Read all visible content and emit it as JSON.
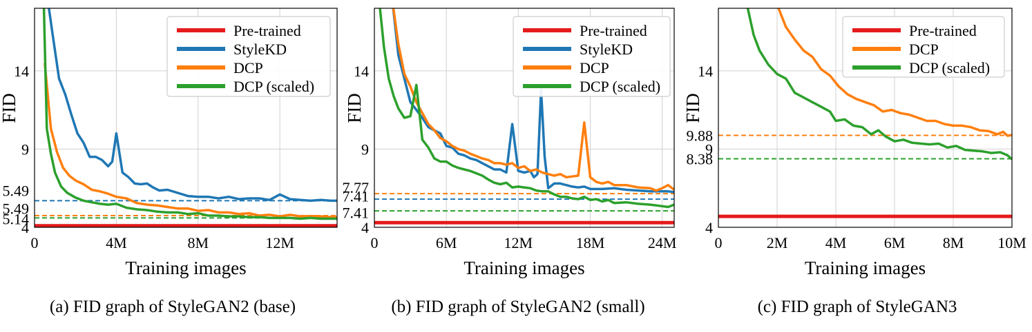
{
  "colors": {
    "pretrained": "#e41a1c",
    "stylekd": "#1f77b4",
    "dcp": "#ff7f0e",
    "dcp_scaled": "#2ca02c",
    "grid": "#d0d0d0"
  },
  "chart_data": [
    {
      "type": "line",
      "caption": "(a) FID graph of StyleGAN2 (base)",
      "xlabel": "Training images",
      "ylabel": "FID",
      "xlim": [
        0,
        14.8
      ],
      "ylim": [
        4,
        18
      ],
      "xticks": [
        {
          "v": 0,
          "label": "0"
        },
        {
          "v": 4,
          "label": "4M"
        },
        {
          "v": 8,
          "label": "8M"
        },
        {
          "v": 12,
          "label": "12M"
        }
      ],
      "yticks": [
        {
          "v": 4,
          "label": "4"
        },
        {
          "v": 9,
          "label": "9"
        },
        {
          "v": 14,
          "label": "14"
        }
      ],
      "ref_labels": [
        {
          "v": 6.35,
          "label": "5.49",
          "color": "#1f77b4"
        },
        {
          "v": 5.22,
          "label": "5.49",
          "color": "#ff7f0e"
        },
        {
          "v": 4.55,
          "label": "5.14",
          "color": "#2ca02c"
        }
      ],
      "ref_lines": [
        {
          "v": 5.7,
          "color": "#1f77b4"
        },
        {
          "v": 4.75,
          "color": "#ff7f0e"
        },
        {
          "v": 4.6,
          "color": "#2ca02c"
        }
      ],
      "legend": [
        "Pre-trained",
        "StyleKD",
        "DCP",
        "DCP (scaled)"
      ],
      "legend_position": "top-right",
      "grid": true,
      "series": [
        {
          "name": "Pre-trained",
          "color": "#e41a1c",
          "x": [
            0,
            14.8
          ],
          "y": [
            4.1,
            4.1
          ]
        },
        {
          "name": "StyleKD",
          "color": "#1f77b4",
          "x": [
            0.65,
            0.9,
            1.2,
            1.5,
            1.8,
            2.1,
            2.4,
            2.7,
            3.0,
            3.3,
            3.6,
            3.8,
            4.0,
            4.3,
            4.6,
            4.9,
            5.2,
            5.5,
            5.8,
            6.1,
            6.5,
            7.0,
            7.5,
            8.0,
            8.5,
            9.0,
            9.5,
            10.0,
            10.5,
            11.0,
            11.5,
            12.0,
            12.5,
            13.0,
            13.5,
            14.0,
            14.5,
            14.8
          ],
          "y": [
            18.5,
            16.2,
            13.5,
            12.5,
            11.2,
            10.0,
            9.4,
            8.5,
            8.5,
            8.3,
            7.9,
            8.2,
            10.0,
            7.5,
            7.2,
            6.8,
            6.75,
            6.8,
            6.55,
            6.35,
            6.4,
            6.2,
            6.0,
            5.95,
            5.95,
            5.85,
            5.95,
            5.8,
            5.85,
            5.85,
            5.75,
            6.1,
            5.8,
            5.75,
            5.7,
            5.75,
            5.7,
            5.7
          ]
        },
        {
          "name": "DCP",
          "color": "#ff7f0e",
          "x": [
            0.5,
            0.8,
            1.1,
            1.4,
            1.7,
            2.0,
            2.4,
            2.8,
            3.2,
            3.6,
            4.0,
            4.5,
            5.0,
            5.5,
            6.0,
            6.5,
            7.0,
            7.5,
            8.0,
            8.5,
            9.0,
            9.5,
            10.0,
            10.5,
            11.0,
            11.5,
            12.0,
            12.5,
            13.0,
            13.5,
            14.0,
            14.5,
            14.8
          ],
          "y": [
            14.5,
            10.3,
            8.8,
            7.8,
            7.3,
            7.0,
            6.75,
            6.4,
            6.3,
            6.15,
            5.95,
            5.85,
            5.55,
            5.45,
            5.4,
            5.3,
            5.2,
            5.2,
            5.05,
            5.1,
            4.95,
            4.95,
            4.85,
            4.9,
            4.75,
            4.8,
            4.7,
            4.8,
            4.7,
            4.72,
            4.7,
            4.65,
            4.65
          ]
        },
        {
          "name": "DCP (scaled)",
          "color": "#2ca02c",
          "x": [
            0.45,
            0.6,
            0.8,
            1.0,
            1.3,
            1.6,
            2.0,
            2.4,
            2.8,
            3.2,
            3.6,
            4.0,
            4.5,
            5.0,
            5.5,
            6.0,
            6.5,
            7.0,
            7.5,
            8.0,
            8.5,
            9.0,
            9.5,
            10.0,
            10.5,
            11.0,
            11.5,
            12.0,
            12.5,
            13.0,
            13.5,
            14.0,
            14.5,
            14.8
          ],
          "y": [
            18.5,
            10.3,
            8.7,
            7.5,
            6.6,
            6.2,
            5.9,
            5.7,
            5.6,
            5.5,
            5.45,
            5.5,
            5.25,
            5.15,
            5.1,
            5.0,
            4.95,
            4.95,
            4.85,
            4.9,
            4.75,
            4.75,
            4.7,
            4.7,
            4.65,
            4.65,
            4.6,
            4.6,
            4.6,
            4.55,
            4.6,
            4.55,
            4.55,
            4.55
          ]
        }
      ]
    },
    {
      "type": "line",
      "caption": "(b) FID graph of StyleGAN2 (small)",
      "xlabel": "Training images",
      "ylabel": "FID",
      "xlim": [
        0,
        25
      ],
      "ylim": [
        4,
        18
      ],
      "xticks": [
        {
          "v": 0,
          "label": "0"
        },
        {
          "v": 6,
          "label": "6M"
        },
        {
          "v": 12,
          "label": "12M"
        },
        {
          "v": 18,
          "label": "18M"
        },
        {
          "v": 24,
          "label": "24M"
        }
      ],
      "yticks": [
        {
          "v": 4,
          "label": "4"
        },
        {
          "v": 9,
          "label": "9"
        },
        {
          "v": 14,
          "label": "14"
        }
      ],
      "ref_labels": [
        {
          "v": 6.55,
          "label": "7.77",
          "color": "#ff7f0e"
        },
        {
          "v": 6.0,
          "label": "7.41",
          "color": "#1f77b4"
        },
        {
          "v": 4.95,
          "label": "7.41",
          "color": "#2ca02c"
        }
      ],
      "ref_lines": [
        {
          "v": 6.15,
          "color": "#ff7f0e"
        },
        {
          "v": 5.8,
          "color": "#1f77b4"
        },
        {
          "v": 5.05,
          "color": "#2ca02c"
        }
      ],
      "legend": [
        "Pre-trained",
        "StyleKD",
        "DCP",
        "DCP (scaled)"
      ],
      "legend_position": "top-right",
      "grid": true,
      "series": [
        {
          "name": "Pre-trained",
          "color": "#e41a1c",
          "x": [
            0,
            25
          ],
          "y": [
            4.3,
            4.3
          ]
        },
        {
          "name": "StyleKD",
          "color": "#1f77b4",
          "x": [
            1.5,
            2.0,
            2.5,
            3.0,
            3.5,
            4.0,
            4.5,
            5.0,
            5.5,
            6.0,
            6.5,
            7.0,
            7.5,
            8.0,
            8.5,
            9.0,
            9.5,
            10.0,
            10.5,
            11.0,
            11.5,
            12.0,
            12.5,
            13.0,
            13.3,
            13.6,
            13.9,
            14.2,
            14.5,
            15.0,
            15.5,
            16.0,
            16.5,
            17.0,
            17.5,
            18.0,
            19.0,
            20.0,
            21.0,
            22.0,
            23.0,
            24.0,
            24.5,
            25.0
          ],
          "y": [
            18.5,
            15.0,
            13.5,
            12.0,
            11.5,
            11.0,
            10.4,
            10.2,
            10.0,
            9.2,
            9.1,
            8.7,
            8.6,
            8.4,
            8.3,
            8.1,
            7.9,
            7.7,
            7.7,
            7.5,
            10.6,
            7.6,
            7.5,
            7.6,
            7.2,
            7.4,
            12.8,
            8.5,
            6.5,
            6.8,
            6.8,
            6.7,
            6.6,
            6.55,
            6.6,
            6.45,
            6.45,
            6.5,
            6.4,
            6.35,
            6.3,
            6.3,
            6.3,
            6.25
          ]
        },
        {
          "name": "DCP",
          "color": "#ff7f0e",
          "x": [
            1.5,
            2.0,
            2.5,
            3.0,
            3.5,
            4.0,
            4.5,
            5.0,
            5.5,
            6.0,
            6.5,
            7.0,
            7.5,
            8.0,
            8.5,
            9.0,
            9.5,
            10.0,
            10.5,
            11.0,
            11.5,
            12.0,
            12.5,
            13.0,
            13.5,
            14.0,
            14.5,
            15.0,
            15.5,
            16.0,
            16.5,
            17.0,
            17.5,
            18.0,
            18.5,
            19.0,
            19.5,
            20.0,
            21.0,
            22.0,
            23.0,
            23.5,
            24.0,
            24.5,
            25.0
          ],
          "y": [
            18.5,
            15.7,
            13.8,
            13.0,
            12.0,
            11.3,
            10.6,
            10.2,
            9.7,
            9.5,
            9.2,
            9.0,
            8.9,
            8.7,
            8.55,
            8.4,
            8.3,
            8.1,
            8.1,
            8.0,
            8.1,
            7.8,
            7.9,
            7.6,
            7.7,
            7.5,
            7.4,
            7.3,
            7.4,
            7.2,
            7.25,
            7.3,
            10.7,
            7.2,
            6.9,
            6.8,
            6.9,
            6.7,
            6.7,
            6.55,
            6.5,
            6.35,
            6.5,
            6.7,
            6.4
          ]
        },
        {
          "name": "DCP (scaled)",
          "color": "#2ca02c",
          "x": [
            0.4,
            0.8,
            1.2,
            1.6,
            2.0,
            2.5,
            3.0,
            3.5,
            4.0,
            4.5,
            5.0,
            5.5,
            6.0,
            6.5,
            7.0,
            7.5,
            8.0,
            8.5,
            9.0,
            9.5,
            10.0,
            10.5,
            11.0,
            11.5,
            12.0,
            12.5,
            13.0,
            13.5,
            14.0,
            14.5,
            15.0,
            15.5,
            16.0,
            16.5,
            17.0,
            17.5,
            18.0,
            18.5,
            19.0,
            19.5,
            20.0,
            21.0,
            22.0,
            23.0,
            24.0,
            24.5,
            25.0
          ],
          "y": [
            18.5,
            15.5,
            13.5,
            12.4,
            11.6,
            11.0,
            11.1,
            13.1,
            9.6,
            9.1,
            8.4,
            8.2,
            8.2,
            7.95,
            7.8,
            7.7,
            7.6,
            7.45,
            7.3,
            7.05,
            6.85,
            6.75,
            6.85,
            6.55,
            6.6,
            6.55,
            6.5,
            6.35,
            6.3,
            6.3,
            6.1,
            5.95,
            5.95,
            5.85,
            5.8,
            5.95,
            5.75,
            5.8,
            5.65,
            5.75,
            5.55,
            5.6,
            5.5,
            5.45,
            5.35,
            5.3,
            5.45
          ]
        }
      ]
    },
    {
      "type": "line",
      "caption": "(c) FID graph of StyleGAN3",
      "xlabel": "Training images",
      "ylabel": "FID",
      "xlim": [
        0,
        10
      ],
      "ylim": [
        4,
        18
      ],
      "xticks": [
        {
          "v": 0,
          "label": "0"
        },
        {
          "v": 2,
          "label": "2M"
        },
        {
          "v": 4,
          "label": "4M"
        },
        {
          "v": 6,
          "label": "6M"
        },
        {
          "v": 8,
          "label": "8M"
        },
        {
          "v": 10,
          "label": "10M"
        }
      ],
      "yticks": [
        {
          "v": 4,
          "label": "4"
        },
        {
          "v": 9,
          "label": "9"
        },
        {
          "v": 14,
          "label": "14"
        }
      ],
      "ref_labels": [
        {
          "v": 9.88,
          "label": "9.88",
          "color": "#ff7f0e"
        },
        {
          "v": 8.38,
          "label": "8.38",
          "color": "#2ca02c"
        }
      ],
      "ref_lines": [
        {
          "v": 9.88,
          "color": "#ff7f0e"
        },
        {
          "v": 8.38,
          "color": "#2ca02c"
        }
      ],
      "legend": [
        "Pre-trained",
        "DCP",
        "DCP (scaled)"
      ],
      "legend_position": "top-right",
      "grid": true,
      "series": [
        {
          "name": "Pre-trained",
          "color": "#e41a1c",
          "x": [
            0,
            10
          ],
          "y": [
            4.7,
            4.7
          ]
        },
        {
          "name": "DCP",
          "color": "#ff7f0e",
          "x": [
            2.05,
            2.3,
            2.6,
            2.9,
            3.2,
            3.5,
            3.8,
            4.1,
            4.4,
            4.7,
            5.0,
            5.3,
            5.6,
            5.9,
            6.2,
            6.5,
            6.8,
            7.1,
            7.4,
            7.7,
            8.0,
            8.3,
            8.6,
            8.9,
            9.2,
            9.5,
            9.7,
            9.85,
            10.0
          ],
          "y": [
            18.0,
            16.8,
            16.0,
            15.3,
            14.9,
            14.1,
            13.7,
            13.0,
            12.5,
            12.2,
            12.0,
            11.8,
            11.4,
            11.5,
            11.3,
            11.2,
            11.0,
            10.8,
            10.8,
            10.6,
            10.5,
            10.5,
            10.4,
            10.2,
            10.15,
            9.95,
            10.1,
            9.85,
            9.9
          ]
        },
        {
          "name": "DCP (scaled)",
          "color": "#2ca02c",
          "x": [
            1.0,
            1.2,
            1.4,
            1.7,
            2.0,
            2.3,
            2.6,
            2.9,
            3.2,
            3.5,
            3.8,
            4.0,
            4.3,
            4.6,
            4.9,
            5.2,
            5.45,
            5.7,
            6.0,
            6.3,
            6.6,
            6.9,
            7.2,
            7.5,
            7.8,
            8.1,
            8.4,
            8.7,
            9.0,
            9.3,
            9.6,
            9.85,
            10.0
          ],
          "y": [
            18.0,
            16.3,
            15.3,
            14.4,
            13.8,
            13.5,
            12.6,
            12.3,
            12.0,
            11.7,
            11.4,
            10.8,
            10.9,
            10.5,
            10.4,
            9.95,
            10.2,
            9.8,
            9.5,
            9.6,
            9.4,
            9.35,
            9.3,
            9.35,
            9.1,
            9.2,
            8.95,
            8.9,
            8.85,
            8.75,
            8.8,
            8.6,
            8.35
          ]
        }
      ]
    }
  ]
}
